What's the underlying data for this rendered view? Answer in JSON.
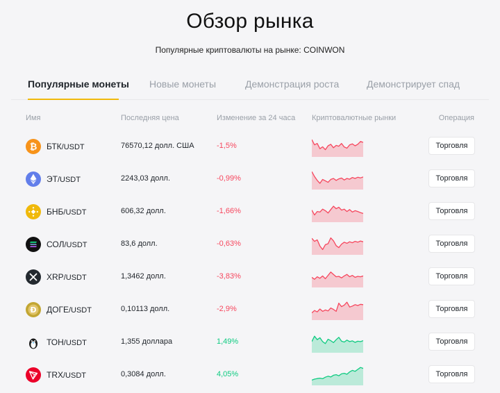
{
  "header": {
    "title": "Обзор рынка",
    "subtitle": "Популярные криптовалюты на рынке: COINWON"
  },
  "tabs": [
    {
      "label": "Популярные монеты",
      "active": true
    },
    {
      "label": "Новые монеты",
      "active": false
    },
    {
      "label": "Демонстрация роста",
      "active": false
    },
    {
      "label": "Демонстрирует спад",
      "active": false
    }
  ],
  "columns": {
    "name": "Имя",
    "last_price": "Последняя цена",
    "change_24h": "Изменение за 24 часа",
    "markets": "Криптовалютные рынки",
    "operation": "Операция"
  },
  "colors": {
    "down": "#f6465d",
    "up": "#0ecb81",
    "accent": "#f0b90b"
  },
  "rows": [
    {
      "icon": "bitcoin-icon",
      "icon_color": "#f7931a",
      "base": "БТК",
      "quote": "/USDT",
      "price": "76570,12 долл. США",
      "change": "-1,5%",
      "trend": "down",
      "action": "Торговля",
      "spark": [
        0.82,
        0.55,
        0.62,
        0.35,
        0.45,
        0.3,
        0.5,
        0.58,
        0.4,
        0.52,
        0.48,
        0.62,
        0.44,
        0.38,
        0.55,
        0.6,
        0.5,
        0.58,
        0.72,
        0.68
      ]
    },
    {
      "icon": "ethereum-icon",
      "icon_color": "#627eea",
      "base": "ЭТ",
      "quote": "/USDT",
      "price": "2243,03 долл.",
      "change": "-0,99%",
      "trend": "down",
      "action": "Торговля",
      "spark": [
        0.85,
        0.6,
        0.4,
        0.25,
        0.45,
        0.38,
        0.3,
        0.45,
        0.5,
        0.4,
        0.48,
        0.52,
        0.42,
        0.5,
        0.46,
        0.55,
        0.5,
        0.56,
        0.53,
        0.58
      ]
    },
    {
      "icon": "bnb-icon",
      "icon_color": "#f0b90b",
      "base": "БНБ",
      "quote": "/USDT",
      "price": "606,32 долл.",
      "change": "-1,66%",
      "trend": "down",
      "action": "Торговля",
      "spark": [
        0.55,
        0.3,
        0.48,
        0.45,
        0.6,
        0.52,
        0.4,
        0.58,
        0.75,
        0.62,
        0.7,
        0.55,
        0.6,
        0.48,
        0.58,
        0.45,
        0.52,
        0.48,
        0.42,
        0.38
      ]
    },
    {
      "icon": "solana-icon",
      "icon_color": "#111111",
      "base": "СОЛ",
      "quote": "/USDT",
      "price": "83,6 долл.",
      "change": "-0,63%",
      "trend": "down",
      "action": "Торговля",
      "spark": [
        0.78,
        0.62,
        0.7,
        0.38,
        0.2,
        0.45,
        0.5,
        0.8,
        0.65,
        0.4,
        0.3,
        0.48,
        0.58,
        0.52,
        0.6,
        0.55,
        0.62,
        0.58,
        0.64,
        0.6
      ]
    },
    {
      "icon": "xrp-icon",
      "icon_color": "#23292f",
      "base": "XRP",
      "quote": "/USDT",
      "price": "1,3462 долл.",
      "change": "-3,83%",
      "trend": "down",
      "action": "Торговля",
      "spark": [
        0.45,
        0.35,
        0.48,
        0.4,
        0.52,
        0.38,
        0.55,
        0.72,
        0.6,
        0.48,
        0.5,
        0.42,
        0.52,
        0.6,
        0.48,
        0.55,
        0.45,
        0.5,
        0.48,
        0.52
      ]
    },
    {
      "icon": "dogecoin-icon",
      "icon_color": "#c2a633",
      "base": "ДОГЕ",
      "quote": "/USDT",
      "price": "0,10113 долл.",
      "change": "-2,9%",
      "trend": "down",
      "action": "Торговля",
      "spark": [
        0.3,
        0.42,
        0.35,
        0.5,
        0.38,
        0.45,
        0.4,
        0.55,
        0.48,
        0.38,
        0.8,
        0.62,
        0.7,
        0.85,
        0.6,
        0.65,
        0.72,
        0.68,
        0.74,
        0.72
      ]
    },
    {
      "icon": "toncoin-icon",
      "icon_color": "#0098ea",
      "base": "ТОН",
      "quote": "/USDT",
      "price": "1,355 доллара",
      "change": "1,49%",
      "trend": "up",
      "action": "Торговля",
      "spark": [
        0.5,
        0.78,
        0.6,
        0.7,
        0.5,
        0.4,
        0.62,
        0.55,
        0.45,
        0.6,
        0.72,
        0.52,
        0.48,
        0.58,
        0.5,
        0.54,
        0.46,
        0.52,
        0.5,
        0.55
      ]
    },
    {
      "icon": "tron-icon",
      "icon_color": "#eb0029",
      "base": "TRX",
      "quote": "/USDT",
      "price": "0,3084 долл.",
      "change": "4,05%",
      "trend": "up",
      "action": "Торговля",
      "spark": [
        0.2,
        0.25,
        0.28,
        0.3,
        0.27,
        0.35,
        0.4,
        0.36,
        0.45,
        0.48,
        0.42,
        0.52,
        0.55,
        0.5,
        0.62,
        0.7,
        0.65,
        0.75,
        0.85,
        0.8
      ]
    }
  ]
}
